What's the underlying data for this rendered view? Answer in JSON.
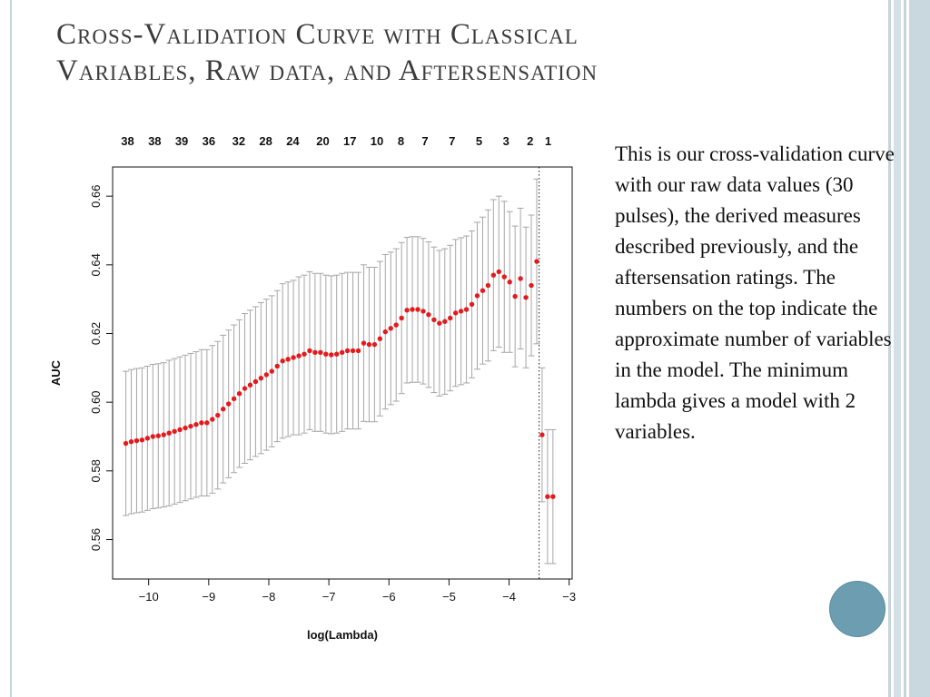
{
  "slide": {
    "title_line1": "Cross-Validation Curve with Classical",
    "title_line2": "Variables, Raw data, and Aftersensation",
    "body": "This is our cross-validation curve with our raw data values (30 pulses), the derived measures described previously, and the aftersensation ratings. The numbers on the top indicate the approximate number of variables in the model. The minimum lambda gives a model with 2 variables.",
    "colors": {
      "title": "#3b3b3b",
      "accent": "#6c9db1",
      "points": "#e41a1c",
      "bars": "#a6a6a6"
    }
  },
  "chart_data": {
    "type": "scatter",
    "title": "",
    "xlabel": "log(Lambda)",
    "ylabel": "AUC",
    "xlim": [
      -10.6,
      -2.95
    ],
    "ylim": [
      0.5485,
      0.6685
    ],
    "xticks": [
      -10,
      -9,
      -8,
      -7,
      -6,
      -5,
      -4,
      -3
    ],
    "xtick_labels": [
      "−10",
      "−9",
      "−8",
      "−7",
      "−6",
      "−5",
      "−4",
      "−3"
    ],
    "yticks": [
      0.56,
      0.58,
      0.6,
      0.62,
      0.64,
      0.66
    ],
    "ytick_labels": [
      "0.56",
      "0.58",
      "0.60",
      "0.62",
      "0.64",
      "0.66"
    ],
    "top_labels": [
      "38",
      "38",
      "39",
      "36",
      "32",
      "28",
      "24",
      "20",
      "17",
      "10",
      "8",
      "7",
      "7",
      "5",
      "3",
      "2",
      "1"
    ],
    "top_label_x": [
      -10.35,
      -9.9,
      -9.45,
      -9.0,
      -8.5,
      -8.05,
      -7.6,
      -7.1,
      -6.65,
      -6.2,
      -5.8,
      -5.4,
      -4.95,
      -4.5,
      -4.05,
      -3.65,
      -3.35
    ],
    "min_lambda_x": -3.5,
    "min_lambda_nvars": 2,
    "points": {
      "x": [
        -10.38,
        -10.29,
        -10.2,
        -10.11,
        -10.02,
        -9.93,
        -9.84,
        -9.75,
        -9.66,
        -9.57,
        -9.48,
        -9.39,
        -9.3,
        -9.21,
        -9.12,
        -9.03,
        -8.94,
        -8.85,
        -8.76,
        -8.67,
        -8.58,
        -8.49,
        -8.4,
        -8.31,
        -8.22,
        -8.13,
        -8.04,
        -7.95,
        -7.86,
        -7.77,
        -7.68,
        -7.59,
        -7.5,
        -7.41,
        -7.32,
        -7.23,
        -7.14,
        -7.05,
        -6.96,
        -6.87,
        -6.78,
        -6.69,
        -6.6,
        -6.51,
        -6.42,
        -6.33,
        -6.24,
        -6.15,
        -6.06,
        -5.97,
        -5.88,
        -5.79,
        -5.7,
        -5.61,
        -5.52,
        -5.43,
        -5.34,
        -5.25,
        -5.16,
        -5.07,
        -4.98,
        -4.89,
        -4.8,
        -4.71,
        -4.62,
        -4.53,
        -4.44,
        -4.35,
        -4.26,
        -4.17,
        -4.08,
        -3.99,
        -3.9,
        -3.81,
        -3.72,
        -3.63,
        -3.54,
        -3.45,
        -3.36,
        -3.27
      ],
      "auc": [
        0.588,
        0.5885,
        0.5888,
        0.589,
        0.5895,
        0.59,
        0.5902,
        0.5905,
        0.591,
        0.5915,
        0.592,
        0.5925,
        0.593,
        0.5935,
        0.594,
        0.594,
        0.595,
        0.5962,
        0.598,
        0.5995,
        0.601,
        0.6025,
        0.604,
        0.605,
        0.606,
        0.607,
        0.608,
        0.609,
        0.6105,
        0.612,
        0.6125,
        0.613,
        0.6135,
        0.614,
        0.615,
        0.6145,
        0.6145,
        0.614,
        0.6138,
        0.614,
        0.6145,
        0.615,
        0.615,
        0.615,
        0.6172,
        0.6168,
        0.6168,
        0.6185,
        0.6205,
        0.6215,
        0.6225,
        0.6245,
        0.6268,
        0.627,
        0.627,
        0.6265,
        0.6255,
        0.624,
        0.623,
        0.6235,
        0.6245,
        0.626,
        0.6265,
        0.627,
        0.6285,
        0.631,
        0.6325,
        0.634,
        0.637,
        0.638,
        0.6365,
        0.635,
        0.6308,
        0.636,
        0.6305,
        0.634,
        0.641,
        0.5905,
        0.5725,
        0.5725
      ],
      "sd": [
        0.021,
        0.021,
        0.021,
        0.021,
        0.021,
        0.021,
        0.021,
        0.021,
        0.0212,
        0.0212,
        0.0212,
        0.0212,
        0.0212,
        0.0212,
        0.0213,
        0.0213,
        0.0215,
        0.0215,
        0.0215,
        0.0215,
        0.0215,
        0.0215,
        0.0218,
        0.0218,
        0.0218,
        0.022,
        0.022,
        0.022,
        0.022,
        0.0225,
        0.0225,
        0.0225,
        0.023,
        0.023,
        0.023,
        0.023,
        0.023,
        0.023,
        0.023,
        0.023,
        0.023,
        0.0228,
        0.0228,
        0.0228,
        0.0228,
        0.0225,
        0.0225,
        0.0225,
        0.0225,
        0.0222,
        0.0222,
        0.022,
        0.0212,
        0.0212,
        0.0212,
        0.0212,
        0.0212,
        0.0212,
        0.0212,
        0.0212,
        0.0212,
        0.0214,
        0.0214,
        0.0214,
        0.0214,
        0.0214,
        0.0214,
        0.022,
        0.022,
        0.022,
        0.022,
        0.0205,
        0.0205,
        0.0205,
        0.0205,
        0.0205,
        0.024,
        0.0195,
        0.0195,
        0.0195
      ]
    }
  }
}
